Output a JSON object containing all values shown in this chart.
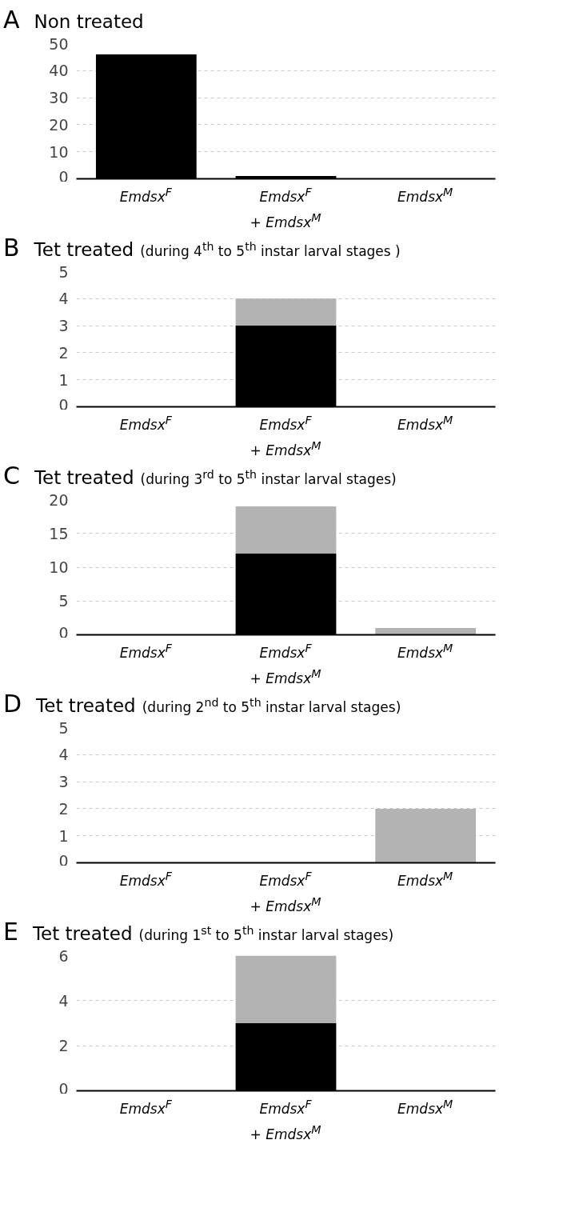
{
  "chart_data": [
    {
      "type": "bar",
      "title": "Non treated",
      "annotations": [
        "A"
      ],
      "categories": [
        "Emdsx$^{F}$",
        "Emdsx$^{F}$ + Emdsx$^{M}$",
        "Emdsx$^{M}$"
      ],
      "stacked": true,
      "series": [
        {
          "color": "#000000",
          "values": [
            46,
            1,
            0
          ]
        }
      ],
      "ylim": [
        0,
        50
      ],
      "yticks": [
        0,
        10,
        20,
        30,
        40,
        50
      ],
      "grid": "y"
    },
    {
      "type": "bar",
      "title": "Tet treated",
      "subtitle": "(during 4$^{th}$ to 5$^{th}$ instar larval stages )",
      "annotations": [
        "B"
      ],
      "categories": [
        "Emdsx$^{F}$",
        "Emdsx$^{F}$ + Emdsx$^{M}$",
        "Emdsx$^{M}$"
      ],
      "stacked": true,
      "series": [
        {
          "color": "#000000",
          "values": [
            0,
            3,
            0
          ]
        },
        {
          "color": "#b3b3b3",
          "values": [
            0,
            1,
            0
          ]
        }
      ],
      "ylim": [
        0,
        5
      ],
      "yticks": [
        0,
        1,
        2,
        3,
        4,
        5
      ],
      "grid": "y"
    },
    {
      "type": "bar",
      "title": "Tet treated",
      "subtitle": "(during 3$^{rd}$ to 5$^{th}$ instar larval stages)",
      "annotations": [
        "C"
      ],
      "categories": [
        "Emdsx$^{F}$",
        "Emdsx$^{F}$ + Emdsx$^{M}$",
        "Emdsx$^{M}$"
      ],
      "stacked": true,
      "series": [
        {
          "color": "#000000",
          "values": [
            0,
            12,
            0
          ]
        },
        {
          "color": "#b3b3b3",
          "values": [
            0,
            7,
            1
          ]
        }
      ],
      "ylim": [
        0,
        20
      ],
      "yticks": [
        0,
        5,
        10,
        15,
        20
      ],
      "grid": "y"
    },
    {
      "type": "bar",
      "title": "Tet treated",
      "subtitle": "(during 2$^{nd}$ to 5$^{th}$ instar larval stages)",
      "annotations": [
        "D"
      ],
      "categories": [
        "Emdsx$^{F}$",
        "Emdsx$^{F}$ + Emdsx$^{M}$",
        "Emdsx$^{M}$"
      ],
      "stacked": true,
      "series": [
        {
          "color": "#000000",
          "values": [
            0,
            0,
            0
          ]
        },
        {
          "color": "#b3b3b3",
          "values": [
            0,
            0,
            2
          ]
        }
      ],
      "ylim": [
        0,
        5
      ],
      "yticks": [
        0,
        1,
        2,
        3,
        4,
        5
      ],
      "grid": "y"
    },
    {
      "type": "bar",
      "title": "Tet treated",
      "subtitle": "(during 1$^{st}$ to 5$^{th}$ instar larval stages)",
      "annotations": [
        "E"
      ],
      "categories": [
        "Emdsx$^{F}$",
        "Emdsx$^{F}$ + Emdsx$^{M}$",
        "Emdsx$^{M}$"
      ],
      "stacked": true,
      "series": [
        {
          "color": "#000000",
          "values": [
            0,
            3,
            0
          ]
        },
        {
          "color": "#b3b3b3",
          "values": [
            0,
            3,
            0
          ]
        }
      ],
      "ylim": [
        0,
        6
      ],
      "yticks": [
        0,
        2,
        4,
        6
      ],
      "grid": "y"
    }
  ]
}
